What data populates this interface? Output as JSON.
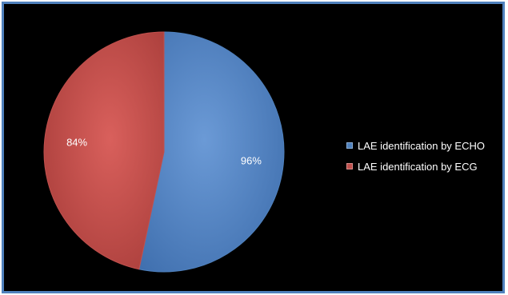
{
  "chart_data": {
    "type": "pie",
    "categories": [
      "LAE identification by ECHO",
      "LAE identification by ECG"
    ],
    "values": [
      96,
      84
    ],
    "data_labels": [
      "96%",
      "84%"
    ],
    "colors": [
      "#4f81bd",
      "#c0504d"
    ],
    "title": "",
    "legend_position": "right",
    "background": "#000000",
    "border_color": "#4f81bd"
  }
}
